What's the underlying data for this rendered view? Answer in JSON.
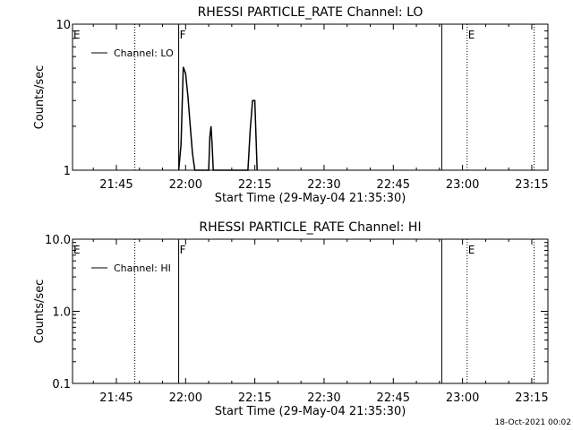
{
  "footer": {
    "timestamp": "18-Oct-2021 00:02"
  },
  "chart_data": [
    {
      "type": "line",
      "title": "RHESSI PARTICLE_RATE Channel: LO",
      "xlabel": "Start Time (29-May-04 21:35:30)",
      "ylabel": "Counts/sec",
      "y_scale": "log",
      "ylim": [
        1,
        10
      ],
      "y_ticks": [
        {
          "value": 1,
          "label": "1"
        },
        {
          "value": 10,
          "label": "10"
        }
      ],
      "xlim": [
        "21:35:30",
        "23:18:30"
      ],
      "x_ticks": [
        "21:45",
        "22:00",
        "22:15",
        "22:30",
        "22:45",
        "23:00",
        "23:15"
      ],
      "legend": {
        "placement": "top-left",
        "entries": [
          "Channel: LO"
        ]
      },
      "markers": [
        {
          "time": "21:35:30",
          "label": "E",
          "style": "none"
        },
        {
          "time": "21:49:00",
          "label": "",
          "style": "dotted"
        },
        {
          "time": "21:58:30",
          "label": "F",
          "style": "solid"
        },
        {
          "time": "22:55:30",
          "label": "",
          "style": "solid"
        },
        {
          "time": "23:01:00",
          "label": "E",
          "style": "dotted"
        },
        {
          "time": "23:15:30",
          "label": "",
          "style": "dotted"
        }
      ],
      "series": [
        {
          "name": "Channel: LO",
          "x": [
            "21:58:30",
            "21:59:00",
            "21:59:30",
            "22:00:00",
            "22:00:30",
            "22:01:00",
            "22:01:30",
            "22:02:00",
            "22:05:00",
            "22:05:15",
            "22:05:30",
            "22:05:45",
            "22:06:00",
            "22:13:30",
            "22:14:00",
            "22:14:30",
            "22:15:00",
            "22:15:30"
          ],
          "y": [
            1,
            1.5,
            5.1,
            4.6,
            3.2,
            2.0,
            1.3,
            1,
            1,
            1.7,
            2.0,
            1.5,
            1,
            1,
            1.9,
            3.0,
            3.0,
            1
          ]
        }
      ]
    },
    {
      "type": "line",
      "title": "RHESSI PARTICLE_RATE Channel: HI",
      "xlabel": "Start Time (29-May-04 21:35:30)",
      "ylabel": "Counts/sec",
      "y_scale": "log",
      "ylim": [
        0.1,
        10
      ],
      "y_ticks": [
        {
          "value": 0.1,
          "label": "0.1"
        },
        {
          "value": 1,
          "label": "1.0"
        },
        {
          "value": 10,
          "label": "10.0"
        }
      ],
      "xlim": [
        "21:35:30",
        "23:18:30"
      ],
      "x_ticks": [
        "21:45",
        "22:00",
        "22:15",
        "22:30",
        "22:45",
        "23:00",
        "23:15"
      ],
      "legend": {
        "placement": "top-left",
        "entries": [
          "Channel: HI"
        ]
      },
      "markers": [
        {
          "time": "21:35:30",
          "label": "E",
          "style": "none"
        },
        {
          "time": "21:49:00",
          "label": "",
          "style": "dotted"
        },
        {
          "time": "21:58:30",
          "label": "F",
          "style": "solid"
        },
        {
          "time": "22:55:30",
          "label": "",
          "style": "solid"
        },
        {
          "time": "23:01:00",
          "label": "E",
          "style": "dotted"
        },
        {
          "time": "23:15:30",
          "label": "",
          "style": "dotted"
        }
      ],
      "series": [
        {
          "name": "Channel: HI",
          "x": [],
          "y": []
        }
      ]
    }
  ]
}
